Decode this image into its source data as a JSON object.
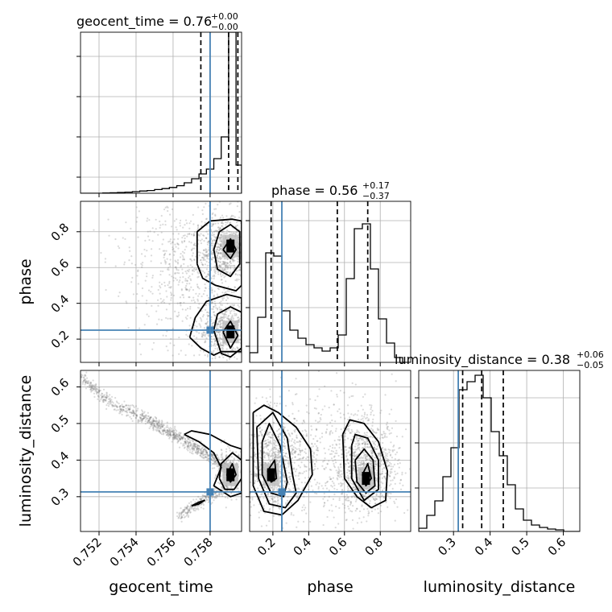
{
  "chart_data": {
    "type": "corner",
    "parameters": [
      "geocent_time",
      "phase",
      "luminosity_distance"
    ],
    "truth": {
      "geocent_time": 0.758,
      "phase": 0.25,
      "luminosity_distance": 0.313
    },
    "colors": {
      "truth": "#4682b4",
      "hist": "#000000",
      "grid": "#b0b0b0",
      "scatter": "#7a7a7a"
    },
    "grid": true,
    "titles": [
      {
        "text": "geocent_time = 0.76",
        "sup": "+0.00",
        "sub": "−0.00"
      },
      {
        "text": "phase = 0.56",
        "sup": "+0.17",
        "sub": "−0.37"
      },
      {
        "text": "luminosity_distance = 0.38",
        "sup": "+0.06",
        "sub": "−0.05"
      }
    ],
    "axes": {
      "geocent_time": {
        "range": [
          0.751,
          0.7597
        ],
        "ticks": [
          0.752,
          0.754,
          0.756,
          0.758
        ],
        "tick_labels": [
          "0.752",
          "0.754",
          "0.756",
          "0.758"
        ],
        "xlabel": "geocent_time"
      },
      "phase": {
        "range": [
          0.07,
          0.97
        ],
        "ticks": [
          0.2,
          0.4,
          0.6,
          0.8
        ],
        "tick_labels": [
          "0.2",
          "0.4",
          "0.6",
          "0.8"
        ],
        "xlabel": "phase",
        "ylabel": "phase"
      },
      "luminosity_distance": {
        "range": [
          0.205,
          0.645
        ],
        "ticks": [
          0.3,
          0.4,
          0.5,
          0.6
        ],
        "tick_labels": [
          "0.3",
          "0.4",
          "0.5",
          "0.6"
        ],
        "xlabel": "luminosity_distance",
        "ylabel": "luminosity_distance"
      }
    },
    "hist_geocent_time": {
      "edges": [
        0.751,
        0.7514,
        0.7518,
        0.7522,
        0.7526,
        0.753,
        0.7534,
        0.7538,
        0.7542,
        0.7546,
        0.755,
        0.7554,
        0.7558,
        0.7562,
        0.7566,
        0.757,
        0.7574,
        0.7578,
        0.7582,
        0.7586,
        0.759,
        0.7594,
        0.7597
      ],
      "counts": [
        0.0,
        0.0,
        0.0,
        0.002,
        0.003,
        0.005,
        0.007,
        0.01,
        0.014,
        0.017,
        0.023,
        0.029,
        0.036,
        0.047,
        0.065,
        0.09,
        0.12,
        0.15,
        0.215,
        0.35,
        1.0,
        0.175
      ],
      "quantiles": [
        0.7575,
        0.759,
        0.7595
      ],
      "ylim": [
        0,
        1.0
      ]
    },
    "hist_phase": {
      "edges": [
        0.07,
        0.115,
        0.16,
        0.205,
        0.25,
        0.295,
        0.34,
        0.385,
        0.43,
        0.475,
        0.52,
        0.565,
        0.61,
        0.655,
        0.7,
        0.745,
        0.79,
        0.835,
        0.88,
        0.925,
        0.97
      ],
      "counts": [
        0.06,
        0.28,
        0.68,
        0.66,
        0.32,
        0.2,
        0.15,
        0.11,
        0.09,
        0.07,
        0.09,
        0.17,
        0.52,
        0.83,
        0.86,
        0.58,
        0.27,
        0.12,
        0.03,
        0.0
      ],
      "quantiles": [
        0.19,
        0.56,
        0.73
      ],
      "ylim": [
        0,
        1.0
      ]
    },
    "hist_luminosity_distance": {
      "edges": [
        0.205,
        0.227,
        0.249,
        0.271,
        0.293,
        0.315,
        0.337,
        0.359,
        0.381,
        0.403,
        0.425,
        0.447,
        0.469,
        0.491,
        0.513,
        0.535,
        0.557,
        0.579,
        0.601,
        0.623,
        0.645
      ],
      "counts": [
        0.02,
        0.1,
        0.19,
        0.34,
        0.52,
        0.88,
        0.93,
        0.97,
        0.83,
        0.62,
        0.47,
        0.29,
        0.14,
        0.07,
        0.04,
        0.025,
        0.015,
        0.01,
        0.0,
        0.0
      ],
      "quantiles": [
        0.325,
        0.377,
        0.436
      ],
      "ylim": [
        0,
        1.0
      ]
    },
    "density_geocent_time_phase": {
      "contours": [
        [
          [
            0.7587,
            0.7
          ],
          [
            0.7591,
            0.65
          ],
          [
            0.7594,
            0.7
          ],
          [
            0.7591,
            0.76
          ],
          [
            0.7587,
            0.7
          ]
        ],
        [
          [
            0.7582,
            0.7
          ],
          [
            0.7584,
            0.59
          ],
          [
            0.7591,
            0.55
          ],
          [
            0.7596,
            0.62
          ],
          [
            0.7596,
            0.8
          ],
          [
            0.7591,
            0.84
          ],
          [
            0.7585,
            0.8
          ],
          [
            0.7582,
            0.7
          ]
        ],
        [
          [
            0.7573,
            0.62
          ],
          [
            0.7576,
            0.54
          ],
          [
            0.7583,
            0.5
          ],
          [
            0.7594,
            0.47
          ],
          [
            0.7597,
            0.5
          ],
          [
            0.7597,
            0.86
          ],
          [
            0.7592,
            0.87
          ],
          [
            0.758,
            0.86
          ],
          [
            0.7573,
            0.8
          ],
          [
            0.7573,
            0.62
          ]
        ],
        [
          [
            0.7587,
            0.24
          ],
          [
            0.7591,
            0.15
          ],
          [
            0.7595,
            0.22
          ],
          [
            0.7591,
            0.3
          ],
          [
            0.7587,
            0.24
          ]
        ],
        [
          [
            0.7582,
            0.25
          ],
          [
            0.7586,
            0.12
          ],
          [
            0.7591,
            0.1
          ],
          [
            0.7597,
            0.15
          ],
          [
            0.7597,
            0.35
          ],
          [
            0.7591,
            0.38
          ],
          [
            0.7584,
            0.34
          ],
          [
            0.7582,
            0.25
          ]
        ],
        [
          [
            0.7569,
            0.21
          ],
          [
            0.7575,
            0.15
          ],
          [
            0.7582,
            0.11
          ],
          [
            0.7586,
            0.13
          ],
          [
            0.7597,
            0.13
          ],
          [
            0.7597,
            0.43
          ],
          [
            0.7589,
            0.45
          ],
          [
            0.7578,
            0.41
          ],
          [
            0.7572,
            0.32
          ],
          [
            0.7569,
            0.21
          ]
        ]
      ],
      "points": [
        {
          "x": 0.7591,
          "y": 0.72
        },
        {
          "x": 0.7591,
          "y": 0.24
        }
      ]
    },
    "density_geocent_time_luminosity_distance": {
      "ridge": [
        [
          0.7511,
          0.625
        ],
        [
          0.7525,
          0.56
        ],
        [
          0.754,
          0.525
        ],
        [
          0.755,
          0.5
        ],
        [
          0.756,
          0.47
        ],
        [
          0.757,
          0.44
        ],
        [
          0.758,
          0.41
        ],
        [
          0.759,
          0.375
        ]
      ],
      "ridge_low": [
        [
          0.7563,
          0.245
        ],
        [
          0.757,
          0.27
        ],
        [
          0.7578,
          0.295
        ],
        [
          0.7585,
          0.31
        ],
        [
          0.7592,
          0.34
        ]
      ],
      "contours": [
        [
          [
            0.7589,
            0.36
          ],
          [
            0.7591,
            0.34
          ],
          [
            0.7594,
            0.36
          ],
          [
            0.7592,
            0.39
          ],
          [
            0.7589,
            0.36
          ]
        ],
        [
          [
            0.7585,
            0.35
          ],
          [
            0.7588,
            0.32
          ],
          [
            0.7593,
            0.32
          ],
          [
            0.7597,
            0.35
          ],
          [
            0.7597,
            0.4
          ],
          [
            0.7592,
            0.42
          ],
          [
            0.7586,
            0.39
          ],
          [
            0.7585,
            0.35
          ]
        ],
        [
          [
            0.7566,
            0.47
          ],
          [
            0.7574,
            0.45
          ],
          [
            0.7582,
            0.42
          ],
          [
            0.7586,
            0.38
          ],
          [
            0.7582,
            0.33
          ],
          [
            0.7591,
            0.3
          ],
          [
            0.7597,
            0.31
          ],
          [
            0.7597,
            0.43
          ],
          [
            0.7591,
            0.44
          ],
          [
            0.758,
            0.47
          ],
          [
            0.757,
            0.48
          ],
          [
            0.7566,
            0.47
          ]
        ],
        [
          [
            0.757,
            0.275
          ],
          [
            0.7574,
            0.28
          ],
          [
            0.7577,
            0.29
          ],
          [
            0.7574,
            0.285
          ],
          [
            0.757,
            0.275
          ]
        ]
      ],
      "points": [
        {
          "x": 0.7591,
          "y": 0.36
        }
      ]
    },
    "density_phase_luminosity_distance": {
      "contours": [
        [
          [
            0.7,
            0.36
          ],
          [
            0.72,
            0.33
          ],
          [
            0.75,
            0.35
          ],
          [
            0.73,
            0.39
          ],
          [
            0.7,
            0.36
          ]
        ],
        [
          [
            0.66,
            0.4
          ],
          [
            0.67,
            0.34
          ],
          [
            0.72,
            0.31
          ],
          [
            0.77,
            0.33
          ],
          [
            0.76,
            0.4
          ],
          [
            0.71,
            0.43
          ],
          [
            0.66,
            0.4
          ]
        ],
        [
          [
            0.64,
            0.44
          ],
          [
            0.64,
            0.35
          ],
          [
            0.71,
            0.29
          ],
          [
            0.79,
            0.32
          ],
          [
            0.79,
            0.4
          ],
          [
            0.73,
            0.46
          ],
          [
            0.66,
            0.47
          ],
          [
            0.64,
            0.44
          ]
        ],
        [
          [
            0.59,
            0.47
          ],
          [
            0.6,
            0.35
          ],
          [
            0.67,
            0.3
          ],
          [
            0.75,
            0.27
          ],
          [
            0.83,
            0.29
          ],
          [
            0.84,
            0.37
          ],
          [
            0.79,
            0.45
          ],
          [
            0.71,
            0.5
          ],
          [
            0.63,
            0.51
          ],
          [
            0.59,
            0.47
          ]
        ],
        [
          [
            0.17,
            0.37
          ],
          [
            0.19,
            0.34
          ],
          [
            0.22,
            0.35
          ],
          [
            0.21,
            0.4
          ],
          [
            0.17,
            0.37
          ]
        ],
        [
          [
            0.14,
            0.45
          ],
          [
            0.14,
            0.36
          ],
          [
            0.19,
            0.31
          ],
          [
            0.26,
            0.3
          ],
          [
            0.28,
            0.34
          ],
          [
            0.24,
            0.44
          ],
          [
            0.18,
            0.5
          ],
          [
            0.14,
            0.45
          ]
        ],
        [
          [
            0.11,
            0.49
          ],
          [
            0.12,
            0.35
          ],
          [
            0.18,
            0.28
          ],
          [
            0.27,
            0.27
          ],
          [
            0.33,
            0.31
          ],
          [
            0.31,
            0.36
          ],
          [
            0.28,
            0.46
          ],
          [
            0.2,
            0.53
          ],
          [
            0.11,
            0.49
          ]
        ],
        [
          [
            0.09,
            0.53
          ],
          [
            0.09,
            0.33
          ],
          [
            0.15,
            0.26
          ],
          [
            0.25,
            0.25
          ],
          [
            0.34,
            0.29
          ],
          [
            0.42,
            0.36
          ],
          [
            0.41,
            0.43
          ],
          [
            0.33,
            0.49
          ],
          [
            0.23,
            0.53
          ],
          [
            0.15,
            0.55
          ],
          [
            0.09,
            0.53
          ]
        ]
      ],
      "points": [
        {
          "x": 0.72,
          "y": 0.35
        },
        {
          "x": 0.19,
          "y": 0.36
        }
      ]
    }
  }
}
